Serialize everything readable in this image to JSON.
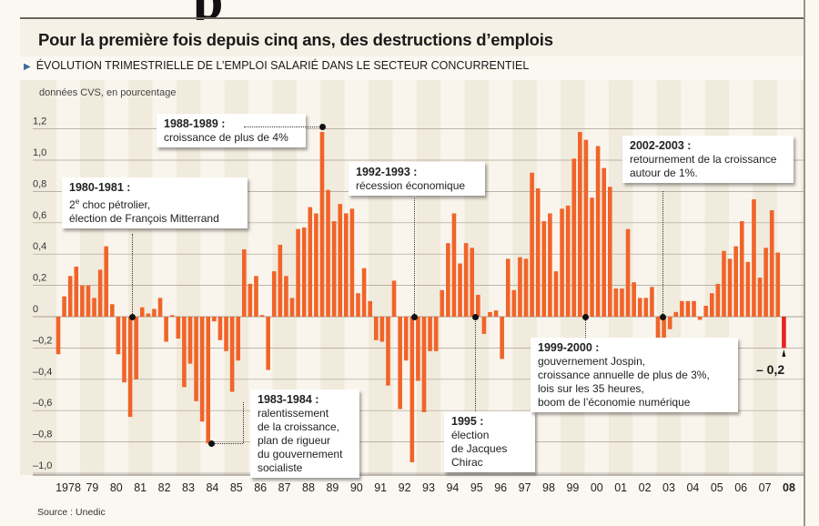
{
  "header": {
    "title": "Pour la première fois depuis cinq ans, des destructions d’emplois",
    "subtitle": "ÉVOLUTION TRIMESTRIELLE DE L’EMPLOI SALARIÉ DANS LE SECTEUR CONCURRENTIEL",
    "unit_note": "données CVS, en pourcentage"
  },
  "source": "Source : Unedic",
  "colors": {
    "bar": "#f0642a",
    "bar_last": "#e8231f",
    "background": "#f1ebdd",
    "stripe": "#fbf8f1",
    "grid": "#a89f94"
  },
  "chart_data": {
    "type": "bar",
    "title": "",
    "xlabel": "",
    "ylabel": "données CVS, en pourcentage",
    "ylim": [
      -1.0,
      1.2
    ],
    "grid": true,
    "y_ticks": [
      "1,2",
      "1,0",
      "0,8",
      "0,6",
      "0,4",
      "0,2",
      "0",
      "-0,2",
      "-0,4",
      "-0,6",
      "-0,8",
      "-1,0"
    ],
    "y_tick_values": [
      1.2,
      1.0,
      0.8,
      0.6,
      0.4,
      0.2,
      0,
      -0.2,
      -0.4,
      -0.6,
      -0.8,
      -1.0
    ],
    "x_ticks": [
      "1978",
      "79",
      "80",
      "81",
      "82",
      "83",
      "84",
      "85",
      "86",
      "87",
      "88",
      "89",
      "90",
      "91",
      "92",
      "93",
      "94",
      "95",
      "96",
      "97",
      "98",
      "99",
      "00",
      "01",
      "02",
      "03",
      "04",
      "05",
      "06",
      "07",
      "08"
    ],
    "values": [
      -0.24,
      0.13,
      0.26,
      0.32,
      0.2,
      0.2,
      0.12,
      0.3,
      0.45,
      0.08,
      -0.24,
      -0.42,
      -0.64,
      -0.4,
      0.06,
      0.02,
      0.05,
      0.12,
      -0.16,
      0.01,
      -0.14,
      -0.45,
      -0.3,
      -0.54,
      -0.67,
      -0.81,
      -0.03,
      -0.15,
      -0.22,
      -0.48,
      -0.28,
      0.43,
      0.21,
      0.26,
      0.01,
      -0.34,
      0.29,
      0.46,
      0.26,
      0.12,
      0.56,
      0.57,
      0.7,
      0.66,
      1.18,
      0.81,
      0.61,
      0.72,
      0.66,
      0.69,
      0.15,
      0.31,
      0.1,
      -0.15,
      -0.16,
      -0.44,
      0.23,
      -0.59,
      -0.28,
      -0.93,
      -0.41,
      -0.61,
      -0.22,
      -0.22,
      0.17,
      0.47,
      0.66,
      0.34,
      0.47,
      0.44,
      0.14,
      -0.11,
      0.03,
      0.04,
      -0.27,
      0.37,
      0.17,
      0.38,
      0.37,
      0.92,
      0.82,
      0.61,
      0.66,
      0.29,
      0.69,
      0.71,
      1.01,
      1.18,
      1.13,
      0.76,
      1.09,
      0.95,
      0.83,
      0.18,
      0.18,
      0.56,
      0.22,
      0.12,
      0.12,
      0.19,
      -0.14,
      -0.14,
      -0.08,
      0.03,
      0.1,
      0.1,
      0.1,
      -0.02,
      0.07,
      0.15,
      0.21,
      0.42,
      0.37,
      0.45,
      0.61,
      0.35,
      0.75,
      0.25,
      0.44,
      0.68,
      0.41,
      -0.2
    ],
    "last_value_label": "– 0,2",
    "annotations": [
      {
        "title": "1988-1989 :",
        "lines": [
          "croissance de plus de 4%"
        ]
      },
      {
        "title": "1980-1981 :",
        "lines": [
          "2e choc pétrolier,",
          "élection de François Mitterrand"
        ]
      },
      {
        "title": "1992-1993 :",
        "lines": [
          "récession économique"
        ]
      },
      {
        "title": "2002-2003 :",
        "lines": [
          "retournement de la croissance",
          "autour de 1%."
        ]
      },
      {
        "title": "1983-1984 :",
        "lines": [
          "ralentissement",
          "de la croissance,",
          "plan de rigueur",
          "du gouvernement socialiste"
        ]
      },
      {
        "title": "1995 :",
        "lines": [
          "élection",
          "de Jacques Chirac"
        ]
      },
      {
        "title": "1999-2000 :",
        "lines": [
          "gouvernement Jospin,",
          "croissance annuelle de plus de 3%,",
          "lois sur les 35 heures,",
          "boom de l’économie numérique"
        ]
      }
    ]
  }
}
